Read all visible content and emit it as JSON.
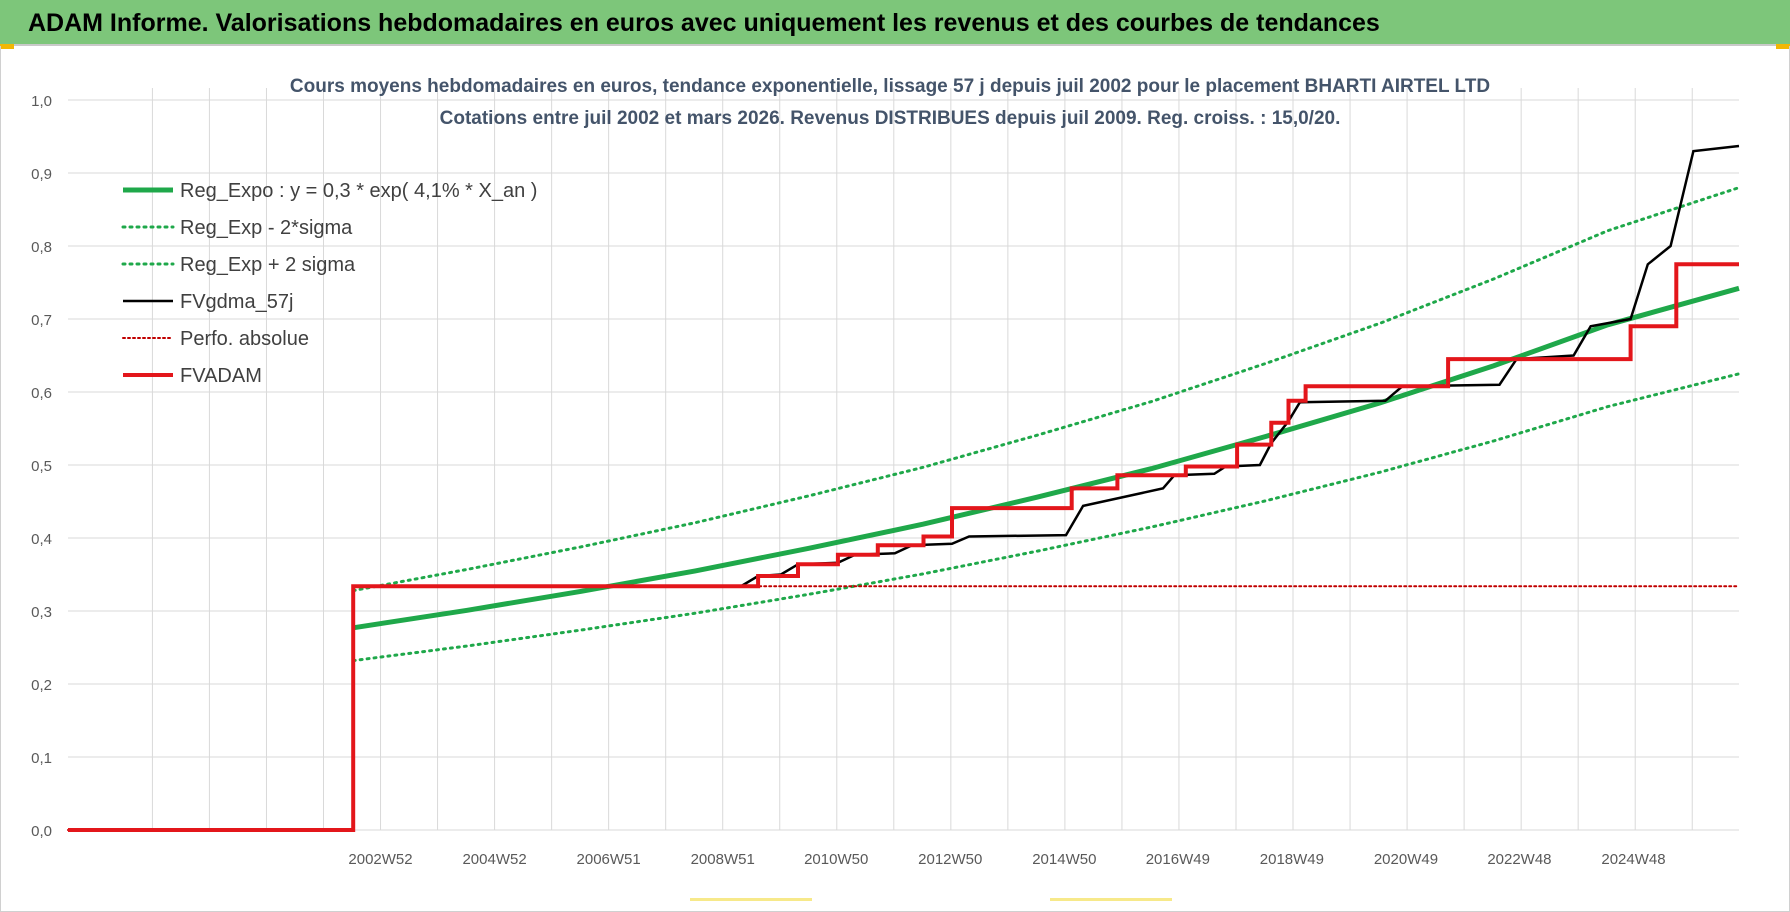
{
  "header": {
    "title": "ADAM Informe. Valorisations hebdomadaires en euros avec uniquement les revenus et des courbes de tendances"
  },
  "colors": {
    "banner": "#7dc67a",
    "regression": "#1fa84a",
    "sigma_bands": "#1fa84a",
    "fvgdma": "#000000",
    "perfo": "#c00000",
    "fvadam": "#e3161b",
    "grid": "#d9d9d9"
  },
  "chart_data": {
    "type": "line",
    "title": "Cours moyens hebdomadaires en euros, tendance exponentielle, lissage 57 j depuis juil 2002 pour le placement BHARTI AIRTEL LTD",
    "subtitle": "Cotations entre juil 2002 et mars 2026. Revenus DISTRIBUES depuis juil 2009. Reg. croiss. : 15,0/20.",
    "xlabel": "",
    "ylabel": "",
    "ylim": [
      0,
      1.0
    ],
    "xlim": [
      1997.5,
      2026.8
    ],
    "y_ticks": [
      "0,0",
      "0,1",
      "0,2",
      "0,3",
      "0,4",
      "0,5",
      "0,6",
      "0,7",
      "0,8",
      "0,9",
      "1,0"
    ],
    "x_tick_labels": [
      "2002W52",
      "2004W52",
      "2006W51",
      "2008W51",
      "2010W50",
      "2012W50",
      "2014W50",
      "2016W49",
      "2018W49",
      "2020W49",
      "2022W48",
      "2024W48"
    ],
    "x_tick_positions": [
      2002.98,
      2004.98,
      2006.98,
      2008.98,
      2010.97,
      2012.97,
      2014.97,
      2016.96,
      2018.96,
      2020.96,
      2022.95,
      2024.95
    ],
    "grid": true,
    "legend_position": "top-left",
    "series": [
      {
        "name": "Reg_Expo : y = 0,3 * exp( 4,1% *  X_an )",
        "style": "solid-thick",
        "x": [
          2002.5,
          2004.5,
          2006.5,
          2008.5,
          2010.5,
          2012.5,
          2014.5,
          2016.5,
          2018.5,
          2020.5,
          2022.5,
          2024.5,
          2026.8
        ],
        "y": [
          0.277,
          0.301,
          0.327,
          0.355,
          0.386,
          0.419,
          0.456,
          0.495,
          0.539,
          0.585,
          0.636,
          0.692,
          0.742
        ]
      },
      {
        "name": "Reg_Exp - 2*sigma",
        "style": "dotted",
        "x": [
          2002.5,
          2004.5,
          2006.5,
          2008.5,
          2010.5,
          2012.5,
          2014.5,
          2016.5,
          2018.5,
          2020.5,
          2022.5,
          2024.5,
          2026.8
        ],
        "y": [
          0.232,
          0.252,
          0.274,
          0.297,
          0.323,
          0.351,
          0.382,
          0.415,
          0.451,
          0.49,
          0.533,
          0.58,
          0.625
        ]
      },
      {
        "name": "Reg_Exp + 2 sigma",
        "style": "dotted",
        "x": [
          2002.5,
          2004.5,
          2006.5,
          2008.5,
          2010.5,
          2012.5,
          2014.5,
          2016.5,
          2018.5,
          2020.5,
          2022.5,
          2024.5,
          2026.8
        ],
        "y": [
          0.328,
          0.357,
          0.388,
          0.421,
          0.458,
          0.497,
          0.541,
          0.587,
          0.639,
          0.694,
          0.755,
          0.821,
          0.88
        ]
      },
      {
        "name": "FVgdma_57j",
        "style": "solid-thin",
        "x": [
          1997.5,
          2002.5,
          2002.5,
          2009.3,
          2009.6,
          2010.0,
          2010.3,
          2011.0,
          2011.3,
          2012.0,
          2012.3,
          2013.0,
          2013.3,
          2015.0,
          2015.3,
          2016.7,
          2016.9,
          2017.6,
          2017.8,
          2018.4,
          2018.6,
          2018.9,
          2019.1,
          2020.6,
          2020.9,
          2022.6,
          2022.9,
          2023.9,
          2024.2,
          2024.9,
          2025.2,
          2025.6,
          2026.0,
          2026.8
        ],
        "y": [
          0.0,
          0.0,
          0.334,
          0.334,
          0.348,
          0.35,
          0.364,
          0.366,
          0.377,
          0.379,
          0.39,
          0.392,
          0.402,
          0.404,
          0.444,
          0.468,
          0.486,
          0.488,
          0.498,
          0.5,
          0.53,
          0.56,
          0.586,
          0.588,
          0.608,
          0.61,
          0.645,
          0.65,
          0.69,
          0.7,
          0.775,
          0.8,
          0.93,
          0.937
        ]
      },
      {
        "name": "Perfo. absolue",
        "style": "dotted",
        "x": [
          1997.5,
          2002.5,
          2002.5,
          2026.8
        ],
        "y": [
          0.0,
          0.0,
          0.334,
          0.334
        ]
      },
      {
        "name": "FVADAM",
        "style": "solid-step",
        "x": [
          1997.5,
          2002.5,
          2002.5,
          2009.6,
          2009.6,
          2010.3,
          2010.3,
          2011.0,
          2011.0,
          2011.7,
          2011.7,
          2012.5,
          2012.5,
          2013.0,
          2013.0,
          2015.1,
          2015.1,
          2015.9,
          2015.9,
          2017.1,
          2017.1,
          2018.0,
          2018.0,
          2018.6,
          2018.6,
          2018.9,
          2018.9,
          2019.2,
          2019.2,
          2021.7,
          2021.7,
          2024.9,
          2024.9,
          2025.7,
          2025.7,
          2026.8
        ],
        "y": [
          0.0,
          0.0,
          0.334,
          0.334,
          0.348,
          0.348,
          0.364,
          0.364,
          0.377,
          0.377,
          0.39,
          0.39,
          0.402,
          0.402,
          0.441,
          0.441,
          0.468,
          0.468,
          0.486,
          0.486,
          0.498,
          0.498,
          0.528,
          0.528,
          0.558,
          0.558,
          0.588,
          0.588,
          0.608,
          0.608,
          0.645,
          0.645,
          0.69,
          0.69,
          0.775,
          0.775
        ]
      }
    ]
  }
}
